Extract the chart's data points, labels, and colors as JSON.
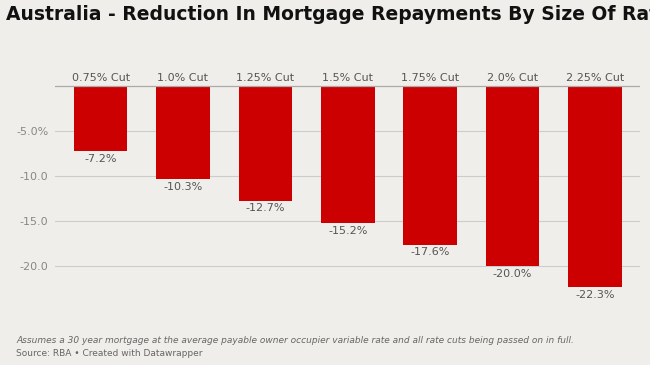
{
  "title": "Australia - Reduction In Mortgage Repayments By Size Of Rate Cut",
  "categories": [
    "0.75% Cut",
    "1.0% Cut",
    "1.25% Cut",
    "1.5% Cut",
    "1.75% Cut",
    "2.0% Cut",
    "2.25% Cut"
  ],
  "values": [
    -7.2,
    -10.3,
    -12.7,
    -15.2,
    -17.6,
    -20.0,
    -22.3
  ],
  "bar_color": "#cc0000",
  "background_color": "#f0eeea",
  "plot_bg_color": "#f0eeea",
  "title_fontsize": 13.5,
  "label_fontsize": 8,
  "cat_fontsize": 8,
  "tick_fontsize": 8,
  "ylim": [
    -24.5,
    1.5
  ],
  "yticks": [
    -5.0,
    -10.0,
    -15.0,
    -20.0
  ],
  "ytick_labels": [
    "-5.0%",
    "-10.0",
    "-15.0",
    "-20.0"
  ],
  "footnote1": "Assumes a 30 year mortgage at the average payable owner occupier variable rate and all rate cuts being passed on in full.",
  "footnote2": "Source: RBA • Created with Datawrapper"
}
